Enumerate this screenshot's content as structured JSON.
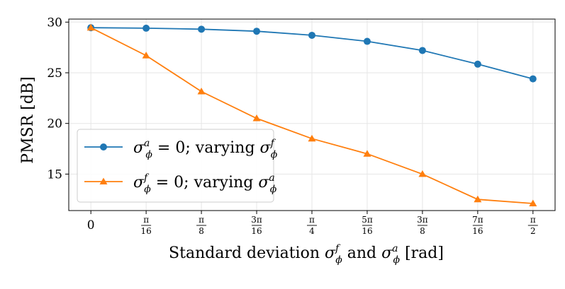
{
  "chart_data": {
    "type": "line",
    "title": "",
    "ylabel": "PMSR [dB]",
    "xlabel": {
      "prefix": "Standard deviation ",
      "sym1": "σ",
      "sup1": "f",
      "sub1": "ϕ",
      "middle": " and ",
      "sym2": "σ",
      "sup2": "a",
      "sub2": "ϕ",
      "suffix": " [rad]"
    },
    "x": [
      0,
      1,
      2,
      3,
      4,
      5,
      6,
      7,
      8
    ],
    "xtick_labels": [
      {
        "whole": "0"
      },
      {
        "num": "π",
        "den": "16"
      },
      {
        "num": "π",
        "den": "8"
      },
      {
        "num": "3π",
        "den": "16"
      },
      {
        "num": "π",
        "den": "4"
      },
      {
        "num": "5π",
        "den": "16"
      },
      {
        "num": "3π",
        "den": "8"
      },
      {
        "num": "7π",
        "den": "16"
      },
      {
        "num": "π",
        "den": "2"
      }
    ],
    "yticks": [
      15,
      20,
      25,
      30
    ],
    "ylim": [
      11.4,
      30.3
    ],
    "xlim": [
      -0.4,
      8.4
    ],
    "grid": true,
    "legend_position": "lower-left",
    "series": [
      {
        "name": "sigma_a_zero",
        "legend": {
          "sym": "σ",
          "sup": "a",
          "sub": "ϕ",
          "mid": " = 0; varying ",
          "sym2": "σ",
          "sup2": "f",
          "sub2": "ϕ"
        },
        "color": "#1f77b4",
        "marker": "circle",
        "values": [
          29.45,
          29.4,
          29.3,
          29.1,
          28.7,
          28.1,
          27.2,
          25.85,
          24.4
        ]
      },
      {
        "name": "sigma_f_zero",
        "legend": {
          "sym": "σ",
          "sup": "f",
          "sub": "ϕ",
          "mid": " = 0; varying ",
          "sym2": "σ",
          "sup2": "a",
          "sub2": "ϕ"
        },
        "color": "#ff7f0e",
        "marker": "triangle",
        "values": [
          29.45,
          26.7,
          23.15,
          20.5,
          18.5,
          17.0,
          15.0,
          12.5,
          12.1
        ]
      }
    ]
  }
}
